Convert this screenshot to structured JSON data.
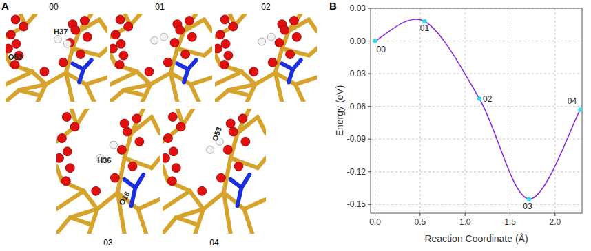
{
  "panels": [
    "A",
    "B"
  ],
  "snapshots": [
    {
      "label": "00",
      "atoms": [
        "H37",
        "O53"
      ]
    },
    {
      "label": "01",
      "atoms": []
    },
    {
      "label": "02",
      "atoms": []
    },
    {
      "label": "03",
      "atoms": [
        "H36",
        "O16"
      ]
    },
    {
      "label": "04",
      "atoms": [
        "O53"
      ]
    }
  ],
  "chart_data": {
    "type": "line",
    "x_label": "Reaction Coordinate (Å)",
    "y_label": "Energy (eV)",
    "x": [
      0,
      0.55,
      1.16,
      1.71,
      2.28
    ],
    "values": [
      0,
      0.018,
      -0.053,
      -0.145,
      -0.063
    ],
    "point_labels": [
      "00",
      "01",
      "02",
      "03",
      "04"
    ],
    "color": "#8a2be2",
    "marker": "circle",
    "xlim": [
      -0.05,
      2.3
    ],
    "ylim": [
      -0.158,
      0.03
    ],
    "xticks": [
      {
        "value": 0,
        "label": "0.0"
      },
      {
        "value": 0.5,
        "label": "0.5"
      },
      {
        "value": 1,
        "label": "1.0"
      },
      {
        "value": 1.5,
        "label": "1.5"
      },
      {
        "value": 2,
        "label": "2.0"
      }
    ],
    "yticks": [
      {
        "value": 0.03,
        "label": "0.03"
      },
      {
        "value": 0,
        "label": "0.00"
      },
      {
        "value": -0.03,
        "label": "-0.03"
      },
      {
        "value": -0.06,
        "label": "-0.06"
      },
      {
        "value": -0.09,
        "label": "-0.09"
      },
      {
        "value": -0.12,
        "label": "-0.12"
      },
      {
        "value": -0.15,
        "label": "-0.15"
      }
    ],
    "grid": true
  }
}
